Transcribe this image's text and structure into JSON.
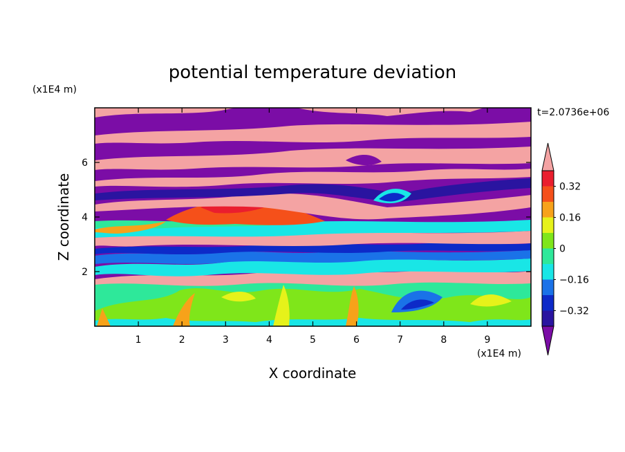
{
  "chart_data": {
    "type": "heatmap",
    "title": "potential temperature deviation",
    "xlabel": "X coordinate",
    "ylabel": "Z coordinate",
    "x_unit": "(x1E4 m)",
    "y_unit": "(x1E4 m)",
    "time_label": "t=2.0736e+06",
    "xlim": [
      0,
      10
    ],
    "ylim": [
      0,
      8
    ],
    "x_ticks": [
      "1",
      "2",
      "3",
      "4",
      "5",
      "6",
      "7",
      "8",
      "9"
    ],
    "y_ticks": [
      "2",
      "4",
      "6"
    ],
    "colorbar": {
      "levels": [
        -0.4,
        -0.32,
        -0.24,
        -0.16,
        -0.08,
        0,
        0.08,
        0.16,
        0.24,
        0.32,
        0.4
      ],
      "tick_labels": [
        "0.32",
        "0.16",
        "0",
        "−0.16",
        "−0.32"
      ],
      "colors": [
        "#7b0da6",
        "#2a14a0",
        "#0d2ac8",
        "#1a72e8",
        "#19e6e6",
        "#2ee89a",
        "#7fe61a",
        "#e6f21a",
        "#f7a21a",
        "#f5501a",
        "#ea1e2e",
        "#f4a3a3"
      ],
      "extend": "both"
    },
    "grid": false
  }
}
